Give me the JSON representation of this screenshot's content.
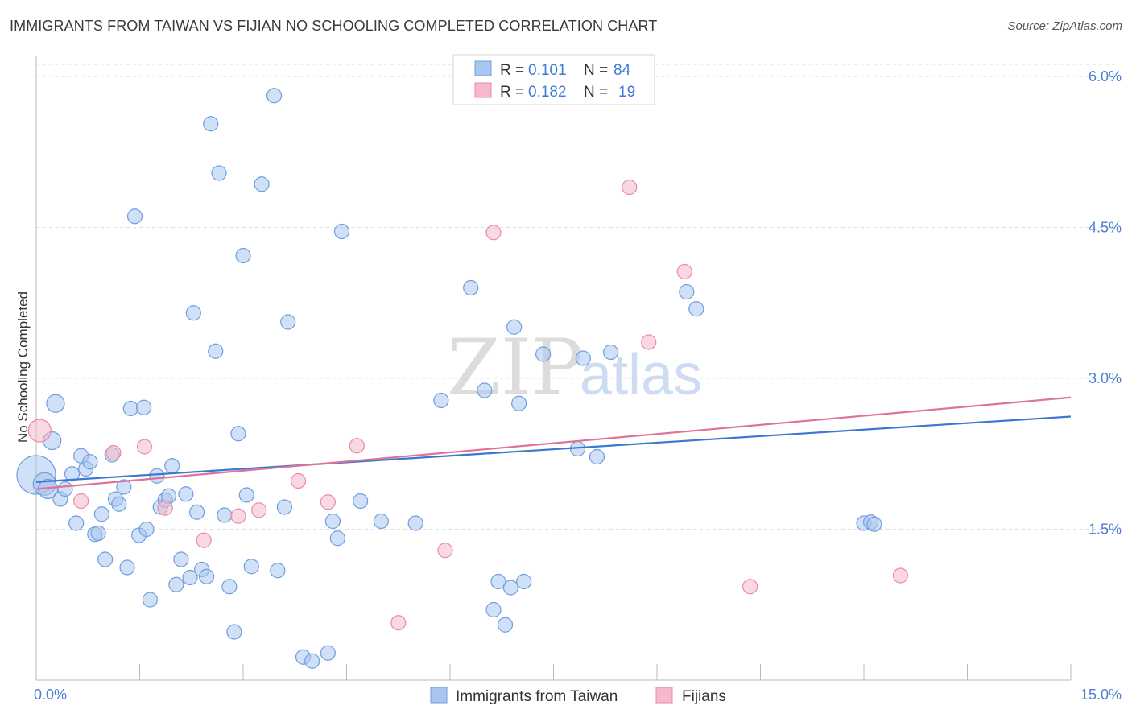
{
  "title": "IMMIGRANTS FROM TAIWAN VS FIJIAN NO SCHOOLING COMPLETED CORRELATION CHART",
  "source": "Source: ZipAtlas.com",
  "watermark": {
    "zip": "ZIP",
    "atlas": "atlas"
  },
  "colors": {
    "blue_fill": "#a9c6ee",
    "blue_stroke": "#6f9de0",
    "blue_line": "#3b78d0",
    "pink_fill": "#f6b8cb",
    "pink_stroke": "#e98aa8",
    "pink_line": "#e0729a",
    "grid": "#dddddd",
    "axis_text": "#4a7fd0"
  },
  "legend": {
    "rows": [
      {
        "r_label": "R =",
        "r_value": "0.101",
        "n_label": "N =",
        "n_value": "84"
      },
      {
        "r_label": "R =",
        "r_value": "0.182",
        "n_label": "N =",
        "n_value": "19"
      }
    ]
  },
  "chart_data": {
    "type": "scatter",
    "xlabel": "",
    "ylabel": "No Schooling Completed",
    "xlim": [
      0,
      15
    ],
    "ylim": [
      0,
      6.2
    ],
    "x_tick_labels": [
      "0.0%",
      "15.0%"
    ],
    "y_ticks": [
      1.5,
      3.0,
      4.5,
      6.0
    ],
    "y_tick_labels": [
      "1.5%",
      "3.0%",
      "4.5%",
      "6.0%"
    ],
    "grid": true,
    "legend_position": "top-center",
    "series": [
      {
        "name": "Immigrants from Taiwan",
        "trend": {
          "x": [
            0,
            15
          ],
          "y": [
            1.97,
            2.62
          ]
        },
        "points": [
          [
            0.0,
            2.04,
            24
          ],
          [
            0.12,
            1.95,
            14
          ],
          [
            0.17,
            1.9,
            12
          ],
          [
            0.23,
            2.38,
            11
          ],
          [
            0.28,
            2.75,
            11
          ],
          [
            0.35,
            1.8,
            9
          ],
          [
            0.42,
            1.9,
            9
          ],
          [
            0.52,
            2.05,
            9
          ],
          [
            0.58,
            1.56,
            9
          ],
          [
            0.65,
            2.23,
            9
          ],
          [
            0.72,
            2.1,
            9
          ],
          [
            0.78,
            2.17,
            9
          ],
          [
            0.85,
            1.45,
            9
          ],
          [
            0.9,
            1.46,
            9
          ],
          [
            0.95,
            1.65,
            9
          ],
          [
            1.0,
            1.2,
            9
          ],
          [
            1.1,
            2.24,
            9
          ],
          [
            1.15,
            1.8,
            9
          ],
          [
            1.2,
            1.75,
            9
          ],
          [
            1.27,
            1.92,
            9
          ],
          [
            1.32,
            1.12,
            9
          ],
          [
            1.37,
            2.7,
            9
          ],
          [
            1.43,
            4.61,
            9
          ],
          [
            1.49,
            1.44,
            9
          ],
          [
            1.56,
            2.71,
            9
          ],
          [
            1.6,
            1.5,
            9
          ],
          [
            1.65,
            0.8,
            9
          ],
          [
            1.75,
            2.03,
            9
          ],
          [
            1.8,
            1.72,
            9
          ],
          [
            1.87,
            1.79,
            9
          ],
          [
            1.92,
            1.83,
            9
          ],
          [
            1.97,
            2.13,
            9
          ],
          [
            2.03,
            0.95,
            9
          ],
          [
            2.1,
            1.2,
            9
          ],
          [
            2.17,
            1.85,
            9
          ],
          [
            2.23,
            1.02,
            9
          ],
          [
            2.28,
            3.65,
            9
          ],
          [
            2.33,
            1.67,
            9
          ],
          [
            2.4,
            1.1,
            9
          ],
          [
            2.47,
            1.03,
            9
          ],
          [
            2.53,
            5.53,
            9
          ],
          [
            2.6,
            3.27,
            9
          ],
          [
            2.65,
            5.04,
            9
          ],
          [
            2.73,
            1.64,
            9
          ],
          [
            2.8,
            0.93,
            9
          ],
          [
            2.87,
            0.48,
            9
          ],
          [
            2.93,
            2.45,
            9
          ],
          [
            3.0,
            4.22,
            9
          ],
          [
            3.05,
            1.84,
            9
          ],
          [
            3.12,
            1.13,
            9
          ],
          [
            3.27,
            4.93,
            9
          ],
          [
            3.45,
            5.81,
            9
          ],
          [
            3.5,
            1.09,
            9
          ],
          [
            3.6,
            1.72,
            9
          ],
          [
            3.65,
            3.56,
            9
          ],
          [
            3.87,
            0.23,
            9
          ],
          [
            4.0,
            0.19,
            9
          ],
          [
            4.23,
            0.27,
            9
          ],
          [
            4.3,
            1.58,
            9
          ],
          [
            4.37,
            1.41,
            9
          ],
          [
            4.43,
            4.46,
            9
          ],
          [
            4.7,
            1.78,
            9
          ],
          [
            5.0,
            1.58,
            9
          ],
          [
            5.5,
            1.56,
            9
          ],
          [
            5.87,
            2.78,
            9
          ],
          [
            6.3,
            3.9,
            9
          ],
          [
            6.5,
            2.88,
            9
          ],
          [
            6.63,
            0.7,
            9
          ],
          [
            6.7,
            0.98,
            9
          ],
          [
            6.8,
            0.55,
            9
          ],
          [
            6.88,
            0.92,
            9
          ],
          [
            6.93,
            3.51,
            9
          ],
          [
            7.0,
            2.75,
            9
          ],
          [
            7.07,
            0.98,
            9
          ],
          [
            7.35,
            3.24,
            9
          ],
          [
            7.85,
            2.3,
            9
          ],
          [
            7.93,
            3.2,
            9
          ],
          [
            8.13,
            2.22,
            9
          ],
          [
            8.33,
            3.26,
            9
          ],
          [
            9.43,
            3.86,
            9
          ],
          [
            9.57,
            3.69,
            9
          ],
          [
            12.0,
            1.56,
            9
          ],
          [
            12.1,
            1.57,
            9
          ],
          [
            12.15,
            1.55,
            9
          ]
        ]
      },
      {
        "name": "Fijians",
        "trend": {
          "x": [
            0,
            15
          ],
          "y": [
            1.9,
            2.81
          ]
        },
        "points": [
          [
            0.05,
            2.48,
            14
          ],
          [
            0.65,
            1.78,
            9
          ],
          [
            1.12,
            2.26,
            9
          ],
          [
            1.57,
            2.32,
            9
          ],
          [
            1.87,
            1.71,
            9
          ],
          [
            2.43,
            1.39,
            9
          ],
          [
            2.93,
            1.63,
            9
          ],
          [
            3.23,
            1.69,
            9
          ],
          [
            3.8,
            1.98,
            9
          ],
          [
            4.23,
            1.77,
            9
          ],
          [
            4.65,
            2.33,
            9
          ],
          [
            5.25,
            0.57,
            9
          ],
          [
            5.93,
            1.29,
            9
          ],
          [
            6.63,
            4.45,
            9
          ],
          [
            8.6,
            4.9,
            9
          ],
          [
            8.88,
            3.36,
            9
          ],
          [
            9.4,
            4.06,
            9
          ],
          [
            10.35,
            0.93,
            9
          ],
          [
            12.53,
            1.04,
            9
          ]
        ]
      }
    ]
  }
}
